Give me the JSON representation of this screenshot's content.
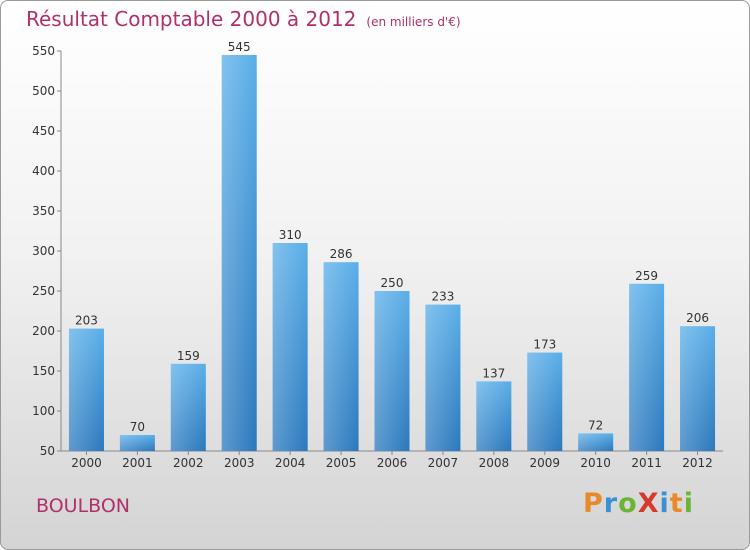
{
  "chart_data": {
    "type": "bar",
    "title": "Résultat Comptable 2000 à 2012",
    "subtitle": "(en milliers d'€)",
    "categories": [
      "2000",
      "2001",
      "2002",
      "2003",
      "2004",
      "2005",
      "2006",
      "2007",
      "2008",
      "2009",
      "2010",
      "2011",
      "2012"
    ],
    "values": [
      203,
      70,
      159,
      545,
      310,
      286,
      250,
      233,
      137,
      173,
      72,
      259,
      206
    ],
    "ylim": [
      50,
      550
    ],
    "yticks": [
      50,
      100,
      150,
      200,
      250,
      300,
      350,
      400,
      450,
      500,
      550
    ],
    "xlabel": "",
    "ylabel": "",
    "grid": false,
    "bar_color": "#3f94d9"
  },
  "footer": {
    "city": "BOULBON",
    "logo_text": "Proxiti",
    "logo_letters": [
      {
        "ch": "P",
        "color": "#e8892a"
      },
      {
        "ch": "r",
        "color": "#3b8fd4"
      },
      {
        "ch": "o",
        "color": "#6bb536"
      },
      {
        "ch": "X",
        "color": "#d63a2f"
      },
      {
        "ch": "i",
        "color": "#3b8fd4"
      },
      {
        "ch": "t",
        "color": "#e8892a"
      },
      {
        "ch": "i",
        "color": "#6bb536"
      }
    ]
  },
  "colors": {
    "title": "#b0306a"
  }
}
